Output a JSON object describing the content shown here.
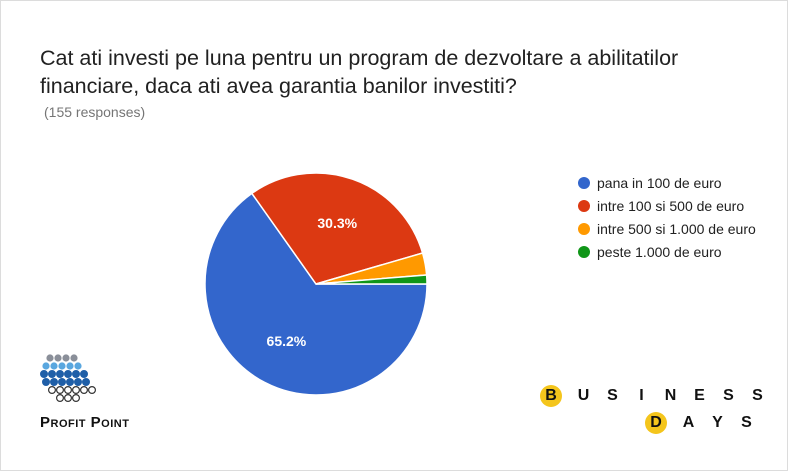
{
  "chart_data": {
    "type": "pie",
    "title": "Cat ati investi pe luna pentru un program de dezvoltare a abilitatilor\nfinanciare, daca ati avea garantia banilor investiti?",
    "subtitle": "(155 responses)",
    "legend_position": "right",
    "slices": [
      {
        "label": "pana in 100 de euro",
        "value": 65.2,
        "color": "#3366cc",
        "data_label": "65.2%"
      },
      {
        "label": "intre 100 si 500 de euro",
        "value": 30.3,
        "color": "#dc3912",
        "data_label": "30.3%"
      },
      {
        "label": "intre 500 si 1.000 de euro",
        "value": 3.2,
        "color": "#ff9900",
        "data_label": ""
      },
      {
        "label": "peste 1.000 de euro",
        "value": 1.3,
        "color": "#109618",
        "data_label": ""
      }
    ]
  },
  "branding": {
    "profit_point": "Profit Point",
    "business_days_row1": [
      "B",
      "U",
      "S",
      "I",
      "N",
      "E",
      "S",
      "S"
    ],
    "business_days_row2": [
      "D",
      "A",
      "Y",
      "S"
    ],
    "accent_color": "#f4c51c"
  }
}
